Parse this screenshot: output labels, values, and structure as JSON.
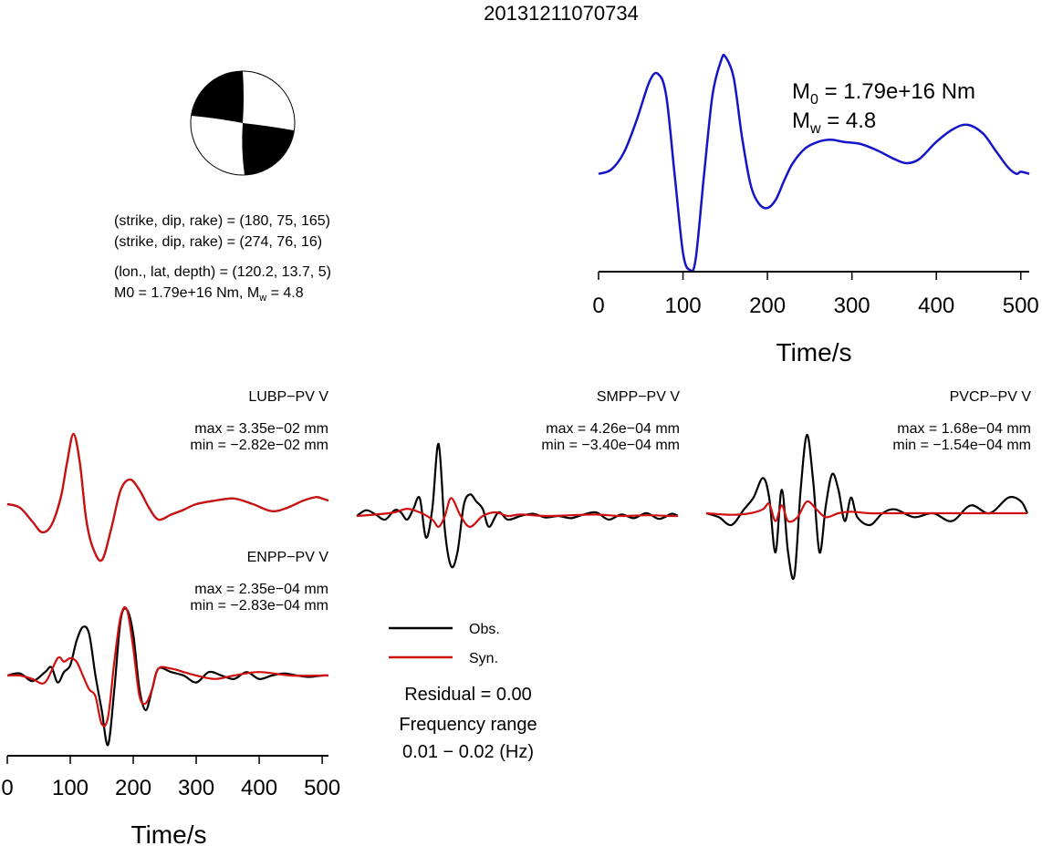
{
  "title": "20131211070734",
  "beachball": {
    "planes": [
      {
        "label": "(strike, dip, rake) = (180, 75, 165)"
      },
      {
        "label": "(strike, dip, rake) = (274, 76, 16)"
      }
    ],
    "location_label": "(lon., lat, depth) = (120.2, 13.7, 5)",
    "moment_label_main": "M",
    "moment_label_text": "0 = 1.79e+16 Nm, M",
    "mw_sub": "w",
    "mw_text": " = 4.8",
    "fill_color": "#000000"
  },
  "stf": {
    "m0_main": "M",
    "m0_sub": "0",
    "m0_value": " = 1.79e+16 Nm",
    "mw_main": "M",
    "mw_sub": "w",
    "mw_value": " = 4.8",
    "color": "#1414c8"
  },
  "legend": {
    "obs_label": "Obs.",
    "syn_label": "Syn.",
    "obs_color": "#000000",
    "syn_color": "#d01010",
    "residual": "Residual = 0.00",
    "freq_title": "Frequency range",
    "freq_value": "0.01 − 0.02 (Hz)"
  },
  "chart_data": [
    {
      "type": "line",
      "title": "source time function",
      "xlabel": "Time/s",
      "xlim": [
        0,
        510
      ],
      "xticks": [
        "0",
        "100",
        "200",
        "300",
        "400",
        "500"
      ],
      "series": [
        {
          "name": "stf",
          "x": [
            0,
            15,
            30,
            45,
            60,
            70,
            80,
            90,
            100,
            108,
            115,
            125,
            135,
            145,
            150,
            160,
            170,
            180,
            190,
            200,
            210,
            220,
            230,
            245,
            260,
            275,
            290,
            310,
            330,
            350,
            365,
            380,
            400,
            420,
            437,
            455,
            470,
            485,
            495,
            500,
            510
          ],
          "values": [
            0.45,
            0.47,
            0.55,
            0.7,
            0.88,
            0.92,
            0.82,
            0.45,
            0.08,
            0.0,
            0.05,
            0.45,
            0.82,
            0.98,
            1.0,
            0.9,
            0.62,
            0.4,
            0.31,
            0.29,
            0.33,
            0.42,
            0.5,
            0.57,
            0.6,
            0.61,
            0.6,
            0.59,
            0.56,
            0.52,
            0.5,
            0.52,
            0.6,
            0.66,
            0.68,
            0.64,
            0.56,
            0.48,
            0.45,
            0.46,
            0.45
          ]
        }
      ]
    },
    {
      "type": "line",
      "station": "LUBP−PV V",
      "max": "max = 3.35e−02 mm",
      "min": "min = −2.82e−02 mm",
      "xlim": [
        0,
        510
      ],
      "series": [
        {
          "name": "Obs.",
          "x": [
            0,
            20,
            40,
            55,
            70,
            85,
            95,
            105,
            115,
            125,
            135,
            150,
            165,
            180,
            195,
            210,
            225,
            240,
            260,
            280,
            300,
            330,
            360,
            390,
            420,
            445,
            470,
            490,
            500,
            510
          ],
          "values": [
            0.0,
            -0.05,
            -0.25,
            -0.4,
            -0.3,
            0.1,
            0.6,
            1.0,
            0.6,
            -0.2,
            -0.6,
            -0.8,
            -0.35,
            0.2,
            0.35,
            0.2,
            -0.05,
            -0.22,
            -0.15,
            -0.08,
            0.0,
            0.05,
            0.08,
            0.0,
            -0.1,
            -0.05,
            0.05,
            0.1,
            0.08,
            0.05
          ]
        },
        {
          "name": "Syn.",
          "x": [
            0,
            20,
            40,
            55,
            70,
            85,
            95,
            105,
            115,
            125,
            135,
            150,
            165,
            180,
            195,
            210,
            225,
            240,
            260,
            280,
            300,
            330,
            360,
            390,
            420,
            445,
            470,
            490,
            500,
            510
          ],
          "values": [
            0.0,
            -0.05,
            -0.25,
            -0.4,
            -0.3,
            0.1,
            0.6,
            1.0,
            0.6,
            -0.2,
            -0.6,
            -0.8,
            -0.35,
            0.2,
            0.35,
            0.2,
            -0.05,
            -0.22,
            -0.15,
            -0.08,
            0.0,
            0.05,
            0.08,
            0.0,
            -0.1,
            -0.05,
            0.05,
            0.1,
            0.08,
            0.05
          ]
        }
      ]
    },
    {
      "type": "line",
      "station": "SMPP−PV V",
      "max": "max = 4.26e−04 mm",
      "min": "min = −3.40e−04 mm",
      "xlim": [
        0,
        510
      ],
      "series": [
        {
          "name": "Obs.",
          "x": [
            0,
            15,
            30,
            45,
            60,
            70,
            80,
            90,
            100,
            110,
            120,
            130,
            140,
            150,
            160,
            170,
            180,
            190,
            200,
            210,
            225,
            240,
            260,
            280,
            300,
            320,
            340,
            360,
            380,
            400,
            420,
            440,
            460,
            480,
            500,
            510
          ],
          "values": [
            0.0,
            0.08,
            0.02,
            -0.05,
            0.08,
            0.05,
            -0.05,
            0.1,
            0.25,
            -0.3,
            0.1,
            1.0,
            -0.2,
            -0.7,
            -0.5,
            0.15,
            0.3,
            0.2,
            0.1,
            -0.15,
            0.05,
            -0.05,
            0.0,
            0.03,
            -0.02,
            0.0,
            -0.03,
            0.02,
            0.05,
            -0.05,
            0.02,
            -0.03,
            0.04,
            -0.04,
            0.03,
            0.0
          ]
        },
        {
          "name": "Syn.",
          "x": [
            0,
            30,
            60,
            80,
            100,
            120,
            130,
            140,
            150,
            165,
            180,
            200,
            220,
            240,
            260,
            300,
            340,
            380,
            420,
            460,
            500,
            510
          ],
          "values": [
            0.0,
            0.02,
            0.05,
            0.1,
            0.05,
            -0.05,
            -0.15,
            0.0,
            0.25,
            0.0,
            -0.15,
            0.0,
            0.05,
            0.0,
            0.02,
            0.0,
            0.01,
            0.02,
            0.0,
            0.01,
            0.0,
            0.0
          ]
        }
      ]
    },
    {
      "type": "line",
      "station": "PVCP−PV V",
      "max": "max = 1.68e−04 mm",
      "min": "min = −1.54e−04 mm",
      "xlim": [
        0,
        510
      ],
      "series": [
        {
          "name": "Obs.",
          "x": [
            0,
            20,
            40,
            60,
            75,
            90,
            100,
            110,
            120,
            130,
            140,
            150,
            160,
            170,
            180,
            190,
            200,
            210,
            220,
            230,
            240,
            260,
            280,
            300,
            330,
            360,
            390,
            420,
            450,
            480,
            500,
            510
          ],
          "values": [
            0.0,
            -0.05,
            -0.15,
            0.05,
            0.2,
            0.45,
            0.2,
            -0.5,
            0.3,
            -0.5,
            -0.8,
            0.3,
            1.0,
            0.4,
            -0.5,
            0.1,
            0.5,
            0.3,
            -0.1,
            0.2,
            -0.05,
            -0.15,
            0.0,
            0.05,
            -0.05,
            0.0,
            -0.1,
            0.1,
            0.0,
            0.2,
            0.15,
            0.0
          ]
        },
        {
          "name": "Syn.",
          "x": [
            0,
            40,
            70,
            90,
            100,
            110,
            120,
            130,
            145,
            160,
            175,
            190,
            210,
            230,
            260,
            300,
            350,
            400,
            450,
            500,
            510
          ],
          "values": [
            0.0,
            -0.02,
            0.0,
            0.05,
            0.12,
            -0.1,
            0.1,
            -0.1,
            -0.05,
            0.15,
            0.05,
            -0.05,
            0.0,
            0.02,
            0.0,
            0.0,
            0.0,
            0.0,
            0.0,
            0.0,
            0.0
          ]
        }
      ]
    },
    {
      "type": "line",
      "station": "ENPP−PV V",
      "max": "max = 2.35e−04 mm",
      "min": "min = −2.83e−04 mm",
      "xlabel": "Time/s",
      "xlim": [
        0,
        510
      ],
      "xticks": [
        "0",
        "100",
        "200",
        "300",
        "400",
        "500"
      ],
      "series": [
        {
          "name": "Obs.",
          "x": [
            0,
            20,
            40,
            60,
            70,
            80,
            90,
            100,
            110,
            120,
            130,
            140,
            150,
            160,
            170,
            180,
            190,
            200,
            210,
            220,
            230,
            240,
            260,
            280,
            300,
            320,
            340,
            360,
            380,
            400,
            420,
            440,
            460,
            480,
            500,
            510
          ],
          "values": [
            0.0,
            0.03,
            -0.08,
            0.05,
            0.12,
            -0.1,
            0.05,
            0.15,
            0.5,
            0.7,
            0.6,
            0.0,
            -0.5,
            -1.0,
            -0.2,
            0.8,
            0.95,
            0.6,
            -0.2,
            -0.5,
            -0.2,
            0.1,
            0.05,
            0.0,
            -0.1,
            0.05,
            0.0,
            -0.05,
            0.05,
            -0.05,
            0.0,
            0.03,
            0.0,
            -0.02,
            0.0,
            0.0
          ]
        },
        {
          "name": "Syn.",
          "x": [
            0,
            20,
            40,
            60,
            80,
            90,
            100,
            110,
            120,
            130,
            140,
            150,
            160,
            170,
            180,
            190,
            200,
            210,
            220,
            230,
            240,
            260,
            280,
            300,
            330,
            360,
            400,
            450,
            500,
            510
          ],
          "values": [
            0.0,
            0.0,
            -0.05,
            -0.1,
            0.25,
            0.2,
            0.25,
            0.2,
            0.0,
            -0.2,
            -0.3,
            -0.7,
            -0.6,
            0.2,
            0.85,
            0.95,
            0.4,
            -0.3,
            -0.4,
            -0.2,
            0.1,
            0.1,
            0.05,
            0.0,
            -0.05,
            0.0,
            0.05,
            0.0,
            0.0,
            0.0
          ]
        }
      ]
    }
  ]
}
